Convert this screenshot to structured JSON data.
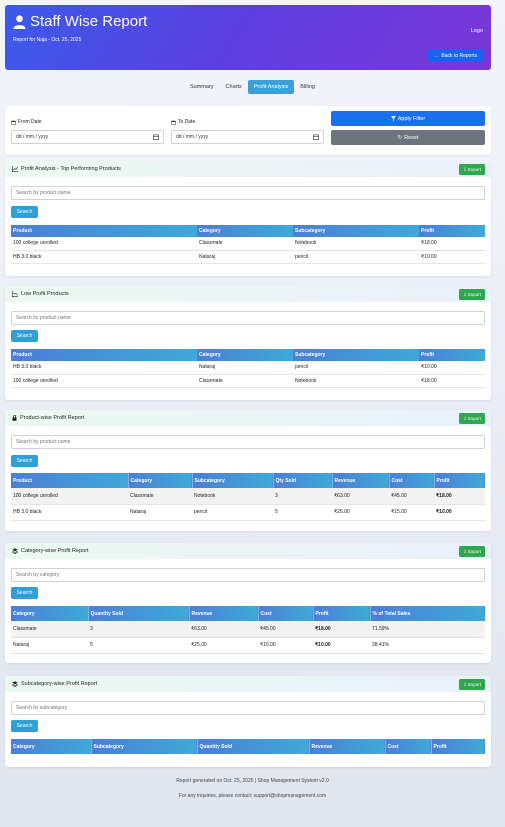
{
  "header": {
    "title": "Staff Wise Report",
    "subtitle": "Report for Naja - Oct. 25, 2025",
    "logo": "Logo",
    "back_label": "Back to Reports",
    "icon": "user-icon"
  },
  "tabs": [
    {
      "label": "Summary",
      "active": false
    },
    {
      "label": "Charts",
      "active": false
    },
    {
      "label": "Profit Analysis",
      "active": true
    },
    {
      "label": "Billing",
      "active": false
    }
  ],
  "filter": {
    "from_label": "From Date",
    "to_label": "To Date",
    "from_value": "dd / mm / yyyy",
    "to_value": "dd / mm / yyyy",
    "apply_label": "Apply Filter",
    "reset_label": "Reset"
  },
  "sections": {
    "top_products": {
      "title": "Profit Analysis - Top Performing Products",
      "export_label": "Export",
      "search_placeholder": "Search by product name",
      "search_label": "Search",
      "columns": [
        "Product",
        "Category",
        "Subcategory",
        "Profit"
      ],
      "rows": [
        [
          "100 college unrolled",
          "Classmate",
          "Notebook",
          "₹18.00"
        ],
        [
          "HB 3.0 black",
          "Nataraj",
          "pencil",
          "₹10.00"
        ]
      ]
    },
    "low_products": {
      "title": "Low Profit Products",
      "export_label": "Export",
      "search_placeholder": "Search by product name",
      "search_label": "Search",
      "columns": [
        "Product",
        "Category",
        "Subcategory",
        "Profit"
      ],
      "rows": [
        [
          "HB 3.0 black",
          "Nataraj",
          "pencil",
          "₹10.00"
        ],
        [
          "100 college unrolled",
          "Classmate",
          "Notebook",
          "₹18.00"
        ]
      ]
    },
    "product_wise": {
      "title": "Product-wise Profit Report",
      "export_label": "Export",
      "search_placeholder": "Search by product name",
      "search_label": "Search",
      "columns": [
        "Product",
        "Category",
        "Subcategory",
        "Qty Sold",
        "Revenue",
        "Cost",
        "Profit"
      ],
      "rows": [
        [
          "100 college unrolled",
          "Classmate",
          "Notebook",
          "3",
          "₹63.00",
          "₹45.00",
          "₹18.00"
        ],
        [
          "HB 3.0 black",
          "Nataraj",
          "pencil",
          "5",
          "₹25.00",
          "₹15.00",
          "₹10.00"
        ]
      ]
    },
    "category_wise": {
      "title": "Category-wise Profit Report",
      "export_label": "Export",
      "search_placeholder": "Search by category",
      "search_label": "Search",
      "columns": [
        "Category",
        "Quantity Sold",
        "Revenue",
        "Cost",
        "Profit",
        "% of Total Sales"
      ],
      "rows": [
        [
          "Classmate",
          "3",
          "₹63.00",
          "₹45.00",
          "₹18.00",
          "71.59%"
        ],
        [
          "Nataraj",
          "5",
          "₹25.00",
          "₹15.00",
          "₹10.00",
          "28.41%"
        ]
      ]
    },
    "subcategory_wise": {
      "title": "Subcategory-wise Profit Report",
      "export_label": "Export",
      "search_placeholder": "Search by subcategory",
      "search_label": "Search",
      "columns": [
        "Category",
        "Subcategory",
        "Quantity Sold",
        "Revenue",
        "Cost",
        "Profit"
      ]
    }
  },
  "footer": {
    "line1": "Report generated on Oct. 25, 2025 | Shop Management System v2.0",
    "line2": "For any inquiries, please contact: support@shopmanagement.com"
  },
  "colors": {
    "header_start": "#3a5bea",
    "header_end": "#7a36d8",
    "primary": "#1a6ff0",
    "export_green": "#2ea84f",
    "table_head": "#4a7fd6"
  }
}
